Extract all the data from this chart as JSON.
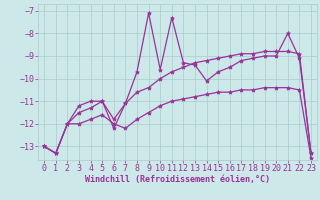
{
  "background_color": "#cce8e8",
  "grid_color": "#aacccc",
  "line_color": "#993399",
  "marker": "*",
  "markersize": 3,
  "linewidth": 0.9,
  "xlim": [
    -0.5,
    23.5
  ],
  "ylim": [
    -13.6,
    -6.7
  ],
  "yticks": [
    -13,
    -12,
    -11,
    -10,
    -9,
    -8,
    -7
  ],
  "xticks": [
    0,
    1,
    2,
    3,
    4,
    5,
    6,
    7,
    8,
    9,
    10,
    11,
    12,
    13,
    14,
    15,
    16,
    17,
    18,
    19,
    20,
    21,
    22,
    23
  ],
  "xlabel": "Windchill (Refroidissement éolien,°C)",
  "xlabel_fontsize": 6,
  "tick_fontsize": 6,
  "series1_x": [
    0,
    1,
    2,
    3,
    4,
    5,
    6,
    7,
    8,
    9,
    10,
    11,
    12,
    13,
    14,
    15,
    16,
    17,
    18,
    19,
    20,
    21,
    22,
    23
  ],
  "series1_y": [
    -13.0,
    -13.3,
    -12.0,
    -11.2,
    -11.0,
    -11.0,
    -12.2,
    -11.1,
    -9.7,
    -7.1,
    -9.6,
    -7.3,
    -9.3,
    -9.4,
    -10.1,
    -9.7,
    -9.5,
    -9.2,
    -9.1,
    -9.0,
    -9.0,
    -8.0,
    -9.1,
    -13.3
  ],
  "series2_x": [
    0,
    1,
    2,
    3,
    4,
    5,
    6,
    7,
    8,
    9,
    10,
    11,
    12,
    13,
    14,
    15,
    16,
    17,
    18,
    19,
    20,
    21,
    22,
    23
  ],
  "series2_y": [
    -13.0,
    -13.3,
    -12.0,
    -11.5,
    -11.3,
    -11.0,
    -11.8,
    -11.1,
    -10.6,
    -10.4,
    -10.0,
    -9.7,
    -9.5,
    -9.3,
    -9.2,
    -9.1,
    -9.0,
    -8.9,
    -8.9,
    -8.8,
    -8.8,
    -8.8,
    -8.9,
    -13.3
  ],
  "series3_x": [
    0,
    1,
    2,
    3,
    4,
    5,
    6,
    7,
    8,
    9,
    10,
    11,
    12,
    13,
    14,
    15,
    16,
    17,
    18,
    19,
    20,
    21,
    22,
    23
  ],
  "series3_y": [
    -13.0,
    -13.3,
    -12.0,
    -12.0,
    -11.8,
    -11.6,
    -12.0,
    -12.2,
    -11.8,
    -11.5,
    -11.2,
    -11.0,
    -10.9,
    -10.8,
    -10.7,
    -10.6,
    -10.6,
    -10.5,
    -10.5,
    -10.4,
    -10.4,
    -10.4,
    -10.5,
    -13.5
  ]
}
